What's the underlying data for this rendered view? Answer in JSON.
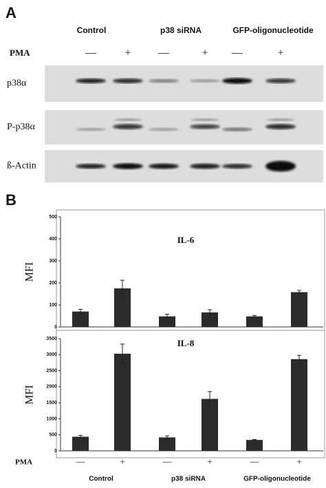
{
  "panel_a": {
    "label": "A",
    "groups": [
      "Control",
      "p38 siRNA",
      "GFP-oligonucleotide"
    ],
    "pma_label": "PMA",
    "pma_signs": [
      "—",
      "+",
      "—",
      "+",
      "—",
      "+"
    ],
    "blot_rows": [
      "p38α",
      "P-p38α",
      "ß-Actin"
    ]
  },
  "panel_b": {
    "label": "B",
    "groups": [
      "Control",
      "p38 siRNA",
      "GFP-oligonucleotide"
    ],
    "pma_label": "PMA"
  },
  "chart_data": [
    {
      "type": "bar",
      "title": "IL-6",
      "y_label": "MFI",
      "categories": [
        null,
        null,
        null,
        null,
        null,
        null
      ],
      "values": [
        70,
        175,
        48,
        66,
        48,
        158
      ],
      "errors": [
        10,
        37,
        10,
        12,
        4,
        8
      ],
      "color": "#2b2b2b",
      "ylim": [
        0,
        500
      ],
      "yticks": [
        0,
        100,
        200,
        300,
        400,
        500
      ]
    },
    {
      "type": "bar",
      "title": "IL-8",
      "y_label": "MFI",
      "categories": [
        "—",
        "+",
        "—",
        "+",
        "—",
        "+"
      ],
      "values": [
        440,
        3030,
        420,
        1620,
        340,
        2860
      ],
      "errors": [
        45,
        300,
        50,
        230,
        15,
        120
      ],
      "color": "#2b2b2b",
      "ylim": [
        0,
        3500
      ],
      "yticks": [
        0,
        500,
        1000,
        1500,
        2000,
        2500,
        3000,
        3500
      ]
    }
  ]
}
